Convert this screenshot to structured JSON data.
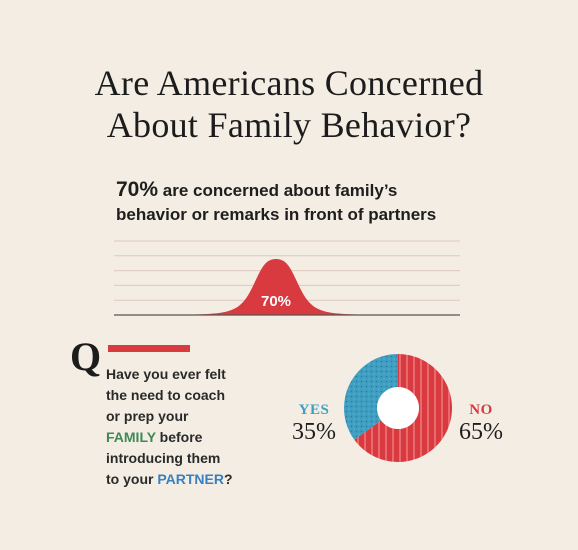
{
  "title": {
    "line1": "Are Americans Concerned",
    "line2": "About Family Behavior?"
  },
  "stat": {
    "value": "70%",
    "text_line1": " are concerned about family’s",
    "text_line2": "behavior or remarks in front of partners"
  },
  "question": {
    "q_letter": "Q",
    "line1": "Have you ever felt",
    "line2": "the need to coach",
    "line3": "or prep your",
    "family_word": "FAMILY",
    "line4_rest": " before",
    "line5": "introducing them",
    "line6_pre": "to your ",
    "partner_word": "PARTNER",
    "line6_post": "?"
  },
  "colors": {
    "background": "#f3ede3",
    "red": "#d83a3f",
    "blue": "#3f9fc2",
    "green": "#3d8a57"
  },
  "chart_data": [
    {
      "type": "area",
      "description_label": "70%",
      "values": [
        70
      ],
      "grid": true
    },
    {
      "type": "pie",
      "donut": true,
      "categories": [
        "YES",
        "NO"
      ],
      "values": [
        35,
        65
      ],
      "labels": [
        "35%",
        "65%"
      ],
      "colors": [
        "#3f9fc2",
        "#d83a3f"
      ]
    }
  ]
}
